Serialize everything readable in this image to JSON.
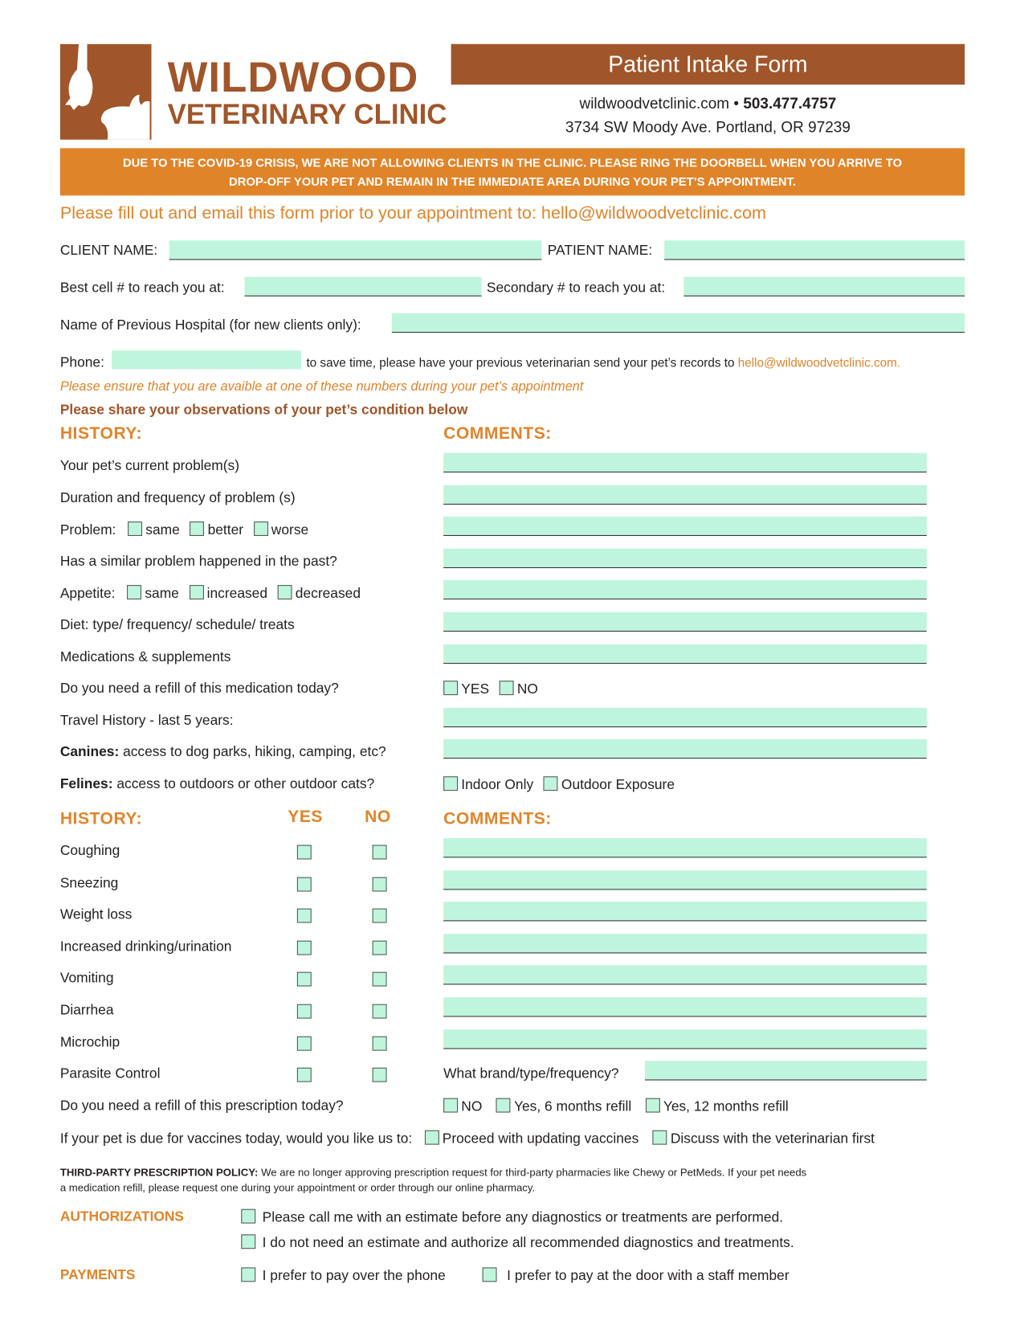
{
  "brand": {
    "name": "WILDWOOD",
    "subtitle": "VETERINARY CLINIC",
    "color": "#a0562a"
  },
  "header": {
    "title": "Patient Intake Form",
    "website": "wildwoodvetclinic.com",
    "bullet": "•",
    "phone": "503.477.4757",
    "address": "3734 SW Moody Ave. Portland, OR 97239"
  },
  "notice": {
    "line1": "DUE TO THE COVID-19 CRISIS, WE ARE NOT ALLOWING CLIENTS IN THE CLINIC. PLEASE RING THE DOORBELL WHEN YOU ARRIVE TO",
    "line2": "DROP-OFF YOUR PET AND REMAIN IN THE IMMEDIATE AREA DURING YOUR PET’S APPOINTMENT.",
    "color": "#e0842a"
  },
  "instruction": "Please fill out and email this form prior to your appointment to: hello@wildwoodvetclinic.com",
  "contact": {
    "client_name": "CLIENT NAME:",
    "patient_name": "PATIENT NAME:",
    "best_cell": "Best cell # to reach you at:",
    "secondary": "Secondary # to reach you at:",
    "prev_hospital": "Name of Previous Hospital (for new clients only):",
    "phone": "Phone:",
    "records_note": "to save time, please have your previous veterinarian send your pet’s records to",
    "records_email": "hello@wildwoodvetclinic.com.",
    "availability_note": "Please ensure that you are avaible at one of these numbers during your pet’s appointment"
  },
  "observations_heading": "Please share your observations of your pet’s condition below",
  "section1": {
    "history": "HISTORY:",
    "comments": "COMMENTS:",
    "rows": [
      {
        "label": "Your pet’s current problem(s)",
        "comment": "field"
      },
      {
        "label": "Duration and frequency of problem (s)",
        "comment": "field"
      },
      {
        "label": "Problem:",
        "options": [
          "same",
          "better",
          "worse"
        ],
        "comment": "field"
      },
      {
        "label": "Has a similar problem happened in the past?",
        "comment": "field"
      },
      {
        "label": "Appetite:",
        "options": [
          "same",
          "increased",
          "decreased"
        ],
        "comment": "field"
      },
      {
        "label": "Diet:  type/ frequency/ schedule/ treats",
        "comment": "field"
      },
      {
        "label": "Medications & supplements",
        "comment": "field"
      },
      {
        "label": "Do you need a refill of this medication today?",
        "comment_options": [
          "YES",
          "NO"
        ]
      },
      {
        "label": "Travel History - last 5 years:",
        "comment": "field"
      },
      {
        "bold": "Canines:",
        "label": " access to dog parks, hiking, camping, etc?",
        "comment": "field"
      },
      {
        "bold": "Felines:",
        "label": " access to outdoors or other outdoor cats?",
        "comment_options": [
          "Indoor Only",
          "Outdoor Exposure"
        ]
      }
    ]
  },
  "section2": {
    "history": "HISTORY:",
    "yes": "YES",
    "no": "NO",
    "comments": "COMMENTS:",
    "rows": [
      {
        "label": "Coughing"
      },
      {
        "label": "Sneezing"
      },
      {
        "label": "Weight loss"
      },
      {
        "label": "Increased drinking/urination"
      },
      {
        "label": "Vomiting"
      },
      {
        "label": "Diarrhea"
      },
      {
        "label": "Microchip"
      },
      {
        "label": "Parasite Control",
        "comment_label": "What brand/type/frequency?"
      }
    ]
  },
  "prescription_refill": {
    "label": "Do you need a refill of this prescription today?",
    "options": [
      "NO",
      "Yes, 6 months refill",
      "Yes, 12 months refill"
    ]
  },
  "vaccines": {
    "label": "If your pet is due for vaccines today, would you like us to:",
    "options": [
      "Proceed with updating vaccines",
      "Discuss with the veterinarian first"
    ]
  },
  "policy": {
    "title": "THIRD-PARTY PRESCRIPTION POLICY:",
    "text": " We are no longer approving prescription request for third-party pharmacies like Chewy or PetMeds. If your pet needs",
    "text2": "a medication refill, please request one during your appointment or order through our online pharmacy."
  },
  "authorizations": {
    "label": "AUTHORIZATIONS",
    "options": [
      "Please call me with an estimate before any diagnostics or treatments are performed.",
      "I do not need an estimate and authorize all recommended diagnostics and treatments."
    ]
  },
  "payments": {
    "label": "PAYMENTS",
    "options": [
      "I prefer to pay over the phone",
      "I prefer to pay at the door with a staff member"
    ]
  }
}
